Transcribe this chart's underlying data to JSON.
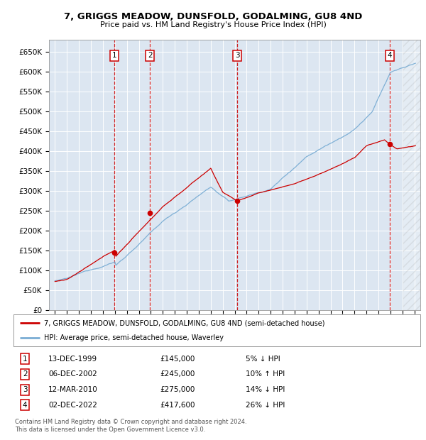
{
  "title": "7, GRIGGS MEADOW, DUNSFOLD, GODALMING, GU8 4ND",
  "subtitle": "Price paid vs. HM Land Registry's House Price Index (HPI)",
  "ylabel_ticks": [
    "£0",
    "£50K",
    "£100K",
    "£150K",
    "£200K",
    "£250K",
    "£300K",
    "£350K",
    "£400K",
    "£450K",
    "£500K",
    "£550K",
    "£600K",
    "£650K"
  ],
  "ytick_values": [
    0,
    50000,
    100000,
    150000,
    200000,
    250000,
    300000,
    350000,
    400000,
    450000,
    500000,
    550000,
    600000,
    650000
  ],
  "ylim": [
    0,
    680000
  ],
  "xlim_start": 1994.5,
  "xlim_end": 2025.5,
  "background_color": "#dce6f1",
  "grid_color": "#ffffff",
  "sale_color": "#cc0000",
  "hpi_color": "#7aadd4",
  "sale_label": "7, GRIGGS MEADOW, DUNSFOLD, GODALMING, GU8 4ND (semi-detached house)",
  "hpi_label": "HPI: Average price, semi-detached house, Waverley",
  "transactions": [
    {
      "num": 1,
      "date": "13-DEC-1999",
      "price": 145000,
      "pct": "5%",
      "dir": "↓",
      "year": 1999.95
    },
    {
      "num": 2,
      "date": "06-DEC-2002",
      "price": 245000,
      "pct": "10%",
      "dir": "↑",
      "year": 2002.92
    },
    {
      "num": 3,
      "date": "12-MAR-2010",
      "price": 275000,
      "pct": "14%",
      "dir": "↓",
      "year": 2010.2
    },
    {
      "num": 4,
      "date": "02-DEC-2022",
      "price": 417600,
      "pct": "26%",
      "dir": "↓",
      "year": 2022.92
    }
  ],
  "footer1": "Contains HM Land Registry data © Crown copyright and database right 2024.",
  "footer2": "This data is licensed under the Open Government Licence v3.0."
}
